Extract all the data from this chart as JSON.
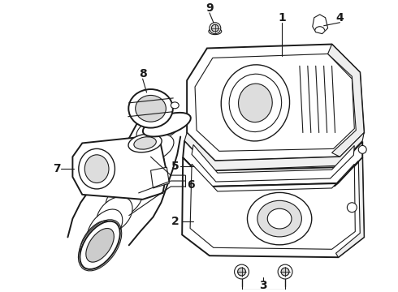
{
  "background_color": "#ffffff",
  "line_color": "#1a1a1a",
  "label_fontsize": 10,
  "label_fontweight": "bold",
  "lw_main": 1.4,
  "lw_thin": 0.8,
  "lw_med": 1.0
}
